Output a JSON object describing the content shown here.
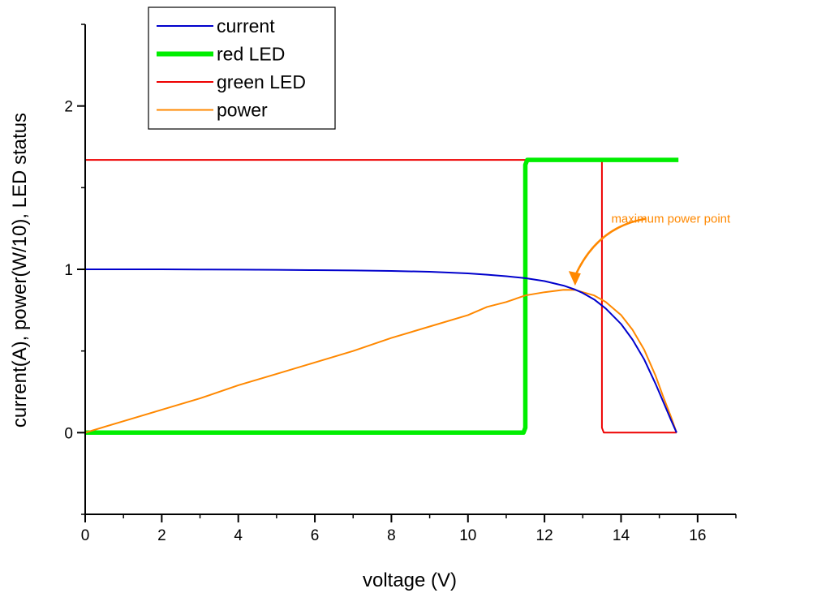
{
  "chart_data": {
    "type": "line",
    "title": "",
    "xlabel": "voltage (V)",
    "ylabel": "current(A), power(W/10), LED status",
    "xlim": [
      0,
      17
    ],
    "ylim": [
      -0.5,
      2.5
    ],
    "x_ticks": [
      0,
      2,
      4,
      6,
      8,
      10,
      12,
      14,
      16
    ],
    "x_tick_labels": [
      "0",
      "2",
      "4",
      "6",
      "8",
      "10",
      "12",
      "14",
      "16"
    ],
    "y_ticks": [
      0,
      1,
      2
    ],
    "y_tick_labels": [
      "0",
      "1",
      "2"
    ],
    "grid": false,
    "legend_position": "top-left",
    "series": [
      {
        "name": "current",
        "color": "#0000cc",
        "x": [
          0,
          1,
          2,
          3,
          4,
          5,
          6,
          7,
          8,
          9,
          10,
          10.5,
          11,
          11.5,
          12,
          12.5,
          12.8,
          13,
          13.3,
          13.6,
          14,
          14.3,
          14.6,
          14.9,
          15.1,
          15.3,
          15.45
        ],
        "y": [
          1.0,
          1.0,
          1.0,
          0.999,
          0.998,
          0.997,
          0.995,
          0.993,
          0.99,
          0.985,
          0.975,
          0.967,
          0.958,
          0.946,
          0.928,
          0.9,
          0.876,
          0.855,
          0.815,
          0.76,
          0.665,
          0.57,
          0.45,
          0.3,
          0.19,
          0.08,
          0.0
        ]
      },
      {
        "name": "red LED",
        "color": "#00ee00",
        "x": [
          0,
          11.45,
          11.5,
          11.5,
          11.55,
          15.5
        ],
        "y": [
          0.0,
          0.0,
          0.03,
          1.64,
          1.67,
          1.67
        ]
      },
      {
        "name": "green LED",
        "color": "#ee0000",
        "x": [
          0,
          13.5,
          13.5,
          13.55,
          15.45
        ],
        "y": [
          1.67,
          1.67,
          0.03,
          0.0,
          0.0
        ]
      },
      {
        "name": "power",
        "color": "#ff8800",
        "x": [
          0,
          1,
          2,
          3,
          4,
          5,
          6,
          7,
          8,
          9,
          10,
          10.5,
          11,
          11.5,
          12,
          12.5,
          12.8,
          13,
          13.3,
          13.6,
          14,
          14.3,
          14.6,
          14.9,
          15.1,
          15.3,
          15.45
        ],
        "y": [
          0.0,
          0.07,
          0.14,
          0.21,
          0.29,
          0.36,
          0.43,
          0.5,
          0.58,
          0.65,
          0.72,
          0.77,
          0.8,
          0.84,
          0.86,
          0.875,
          0.874,
          0.86,
          0.84,
          0.8,
          0.72,
          0.63,
          0.51,
          0.35,
          0.22,
          0.1,
          0.0
        ]
      }
    ],
    "annotations": [
      {
        "text": "maximum power point",
        "color": "#ff8800",
        "text_at": [
          15.3,
          1.31
        ],
        "arrow_from": [
          14.65,
          1.31
        ],
        "arrow_to": [
          12.8,
          0.9
        ]
      }
    ]
  }
}
